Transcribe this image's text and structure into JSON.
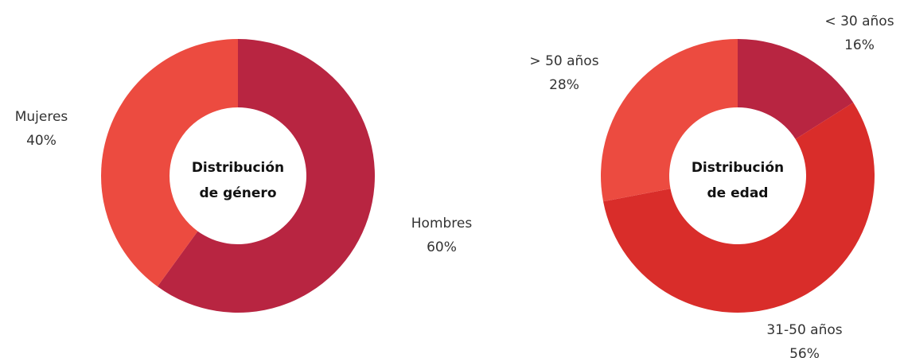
{
  "chart_data": [
    {
      "type": "pie",
      "variant": "donut",
      "title_lines": [
        "Distribución",
        "de género"
      ],
      "slices": [
        {
          "label": "Hombres",
          "value": 60,
          "value_label": "60%",
          "color": "#B82541"
        },
        {
          "label": "Mujeres",
          "value": 40,
          "value_label": "40%",
          "color": "#EC4B40"
        }
      ]
    },
    {
      "type": "pie",
      "variant": "donut",
      "title_lines": [
        "Distribución",
        "de edad"
      ],
      "slices": [
        {
          "label": "< 30 años",
          "value": 16,
          "value_label": "16%",
          "color": "#B82541"
        },
        {
          "label": "31-50 años",
          "value": 56,
          "value_label": "56%",
          "color": "#D92D2A"
        },
        {
          "label": "> 50 años",
          "value": 28,
          "value_label": "28%",
          "color": "#EC4B40"
        }
      ]
    }
  ]
}
